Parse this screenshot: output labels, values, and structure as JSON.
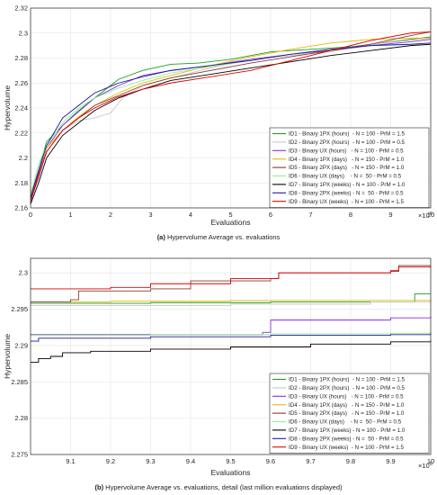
{
  "colors": {
    "ID1": "#1f9e1f",
    "ID2": "#c8c8c8",
    "ID3": "#8a2be2",
    "ID4": "#e6b800",
    "ID5": "#8b3a2a",
    "ID6": "#90ee90",
    "ID7": "#000000",
    "ID8": "#1a1aa6",
    "ID9": "#e00000"
  },
  "legend_entries": [
    "ID1 - Binary 1PX (hours)  - N = 100 - PrM = 1.5",
    "ID2 - Binary 2PX (hours)  - N = 100 - PrM = 0.5",
    "ID3 - Binary UX (hours)   - N = 100 - PrM = 0.5",
    "ID4 - Binary 1PX (days)   - N = 150 - PrM = 1.0",
    "ID5 - Binary 2PX (days)   - N = 150 - PrM = 1.0",
    "ID6 - Binary UX (days)    - N =  50 - PrM = 0.5",
    "ID7 - Binary 1PX (weeks) - N = 100 - PrM = 1.0",
    "ID8 - Binary 2PX (weeks) - N =  50 - PrM = 0.5",
    "ID9 - Binary UX (weeks)  - N = 100 - PrM = 1.5"
  ],
  "chart_data": [
    {
      "type": "line",
      "caption_label": "(a)",
      "caption_text": " Hypervolume Average vs. evaluations",
      "xlabel": "Evaluations",
      "ylabel": "Hypervolume",
      "x_multiplier": "×10",
      "x_multiplier_exp": "6",
      "xlim": [
        0,
        10
      ],
      "ylim": [
        2.16,
        2.32
      ],
      "xticks": [
        0,
        1,
        2,
        3,
        4,
        5,
        6,
        7,
        8,
        9,
        10
      ],
      "yticks": [
        2.16,
        2.18,
        2.2,
        2.22,
        2.24,
        2.26,
        2.28,
        2.3,
        2.32
      ],
      "grid": true,
      "legend_position": "bottom-right",
      "series": [
        {
          "key": "ID1",
          "points": [
            [
              0,
              2.17
            ],
            [
              0.2,
              2.19
            ],
            [
              0.4,
              2.213
            ],
            [
              0.8,
              2.226
            ],
            [
              1.2,
              2.238
            ],
            [
              1.6,
              2.248
            ],
            [
              2.2,
              2.263
            ],
            [
              2.8,
              2.27
            ],
            [
              3.5,
              2.275
            ],
            [
              4.2,
              2.276
            ],
            [
              5,
              2.279
            ],
            [
              6,
              2.285
            ],
            [
              7,
              2.287
            ],
            [
              8,
              2.289
            ],
            [
              9,
              2.293
            ],
            [
              10,
              2.297
            ]
          ]
        },
        {
          "key": "ID2",
          "points": [
            [
              0,
              2.167
            ],
            [
              0.2,
              2.183
            ],
            [
              0.4,
              2.205
            ],
            [
              0.8,
              2.222
            ],
            [
              1.2,
              2.23
            ],
            [
              1.6,
              2.232
            ],
            [
              2,
              2.236
            ],
            [
              2.3,
              2.248
            ],
            [
              2.8,
              2.258
            ],
            [
              3.5,
              2.264
            ],
            [
              4.5,
              2.272
            ],
            [
              5.5,
              2.279
            ],
            [
              6.5,
              2.282
            ],
            [
              7.5,
              2.285
            ],
            [
              8.5,
              2.291
            ],
            [
              10,
              2.296
            ]
          ]
        },
        {
          "key": "ID3",
          "points": [
            [
              0,
              2.168
            ],
            [
              0.2,
              2.188
            ],
            [
              0.4,
              2.208
            ],
            [
              0.8,
              2.226
            ],
            [
              1.2,
              2.237
            ],
            [
              1.6,
              2.248
            ],
            [
              2.2,
              2.258
            ],
            [
              2.8,
              2.266
            ],
            [
              3.5,
              2.27
            ],
            [
              4.5,
              2.274
            ],
            [
              5.5,
              2.279
            ],
            [
              6.5,
              2.283
            ],
            [
              7.5,
              2.286
            ],
            [
              8.5,
              2.29
            ],
            [
              9.5,
              2.293
            ],
            [
              10,
              2.295
            ]
          ]
        },
        {
          "key": "ID4",
          "points": [
            [
              0,
              2.172
            ],
            [
              0.2,
              2.19
            ],
            [
              0.4,
              2.208
            ],
            [
              0.8,
              2.222
            ],
            [
              1.2,
              2.233
            ],
            [
              1.6,
              2.242
            ],
            [
              2.2,
              2.252
            ],
            [
              2.8,
              2.26
            ],
            [
              3.5,
              2.266
            ],
            [
              4.5,
              2.274
            ],
            [
              5.5,
              2.281
            ],
            [
              6.5,
              2.287
            ],
            [
              7.5,
              2.292
            ],
            [
              8.5,
              2.295
            ],
            [
              9.5,
              2.296
            ],
            [
              10,
              2.296
            ]
          ]
        },
        {
          "key": "ID5",
          "points": [
            [
              0,
              2.165
            ],
            [
              0.2,
              2.185
            ],
            [
              0.4,
              2.205
            ],
            [
              0.8,
              2.222
            ],
            [
              1.2,
              2.232
            ],
            [
              1.6,
              2.242
            ],
            [
              2.2,
              2.25
            ],
            [
              2.8,
              2.258
            ],
            [
              3.5,
              2.264
            ],
            [
              4.5,
              2.27
            ],
            [
              5.5,
              2.276
            ],
            [
              6.5,
              2.281
            ],
            [
              7.5,
              2.286
            ],
            [
              8.5,
              2.291
            ],
            [
              9.5,
              2.298
            ],
            [
              10,
              2.301
            ]
          ]
        },
        {
          "key": "ID6",
          "points": [
            [
              0,
              2.17
            ],
            [
              0.2,
              2.195
            ],
            [
              0.4,
              2.21
            ],
            [
              0.8,
              2.228
            ],
            [
              1.2,
              2.24
            ],
            [
              1.6,
              2.248
            ],
            [
              2.2,
              2.256
            ],
            [
              2.8,
              2.262
            ],
            [
              3.5,
              2.268
            ],
            [
              4.5,
              2.273
            ],
            [
              5.5,
              2.278
            ],
            [
              6.5,
              2.283
            ],
            [
              7.5,
              2.287
            ],
            [
              8.5,
              2.29
            ],
            [
              9.5,
              2.291
            ],
            [
              10,
              2.292
            ]
          ]
        },
        {
          "key": "ID7",
          "points": [
            [
              0,
              2.163
            ],
            [
              0.2,
              2.18
            ],
            [
              0.4,
              2.2
            ],
            [
              0.8,
              2.218
            ],
            [
              1.2,
              2.228
            ],
            [
              1.6,
              2.238
            ],
            [
              2.2,
              2.248
            ],
            [
              2.8,
              2.255
            ],
            [
              3.5,
              2.262
            ],
            [
              4.5,
              2.267
            ],
            [
              5.5,
              2.272
            ],
            [
              6.5,
              2.277
            ],
            [
              7.5,
              2.282
            ],
            [
              8.5,
              2.286
            ],
            [
              9.5,
              2.29
            ],
            [
              10,
              2.291
            ]
          ]
        },
        {
          "key": "ID8",
          "points": [
            [
              0,
              2.168
            ],
            [
              0.2,
              2.19
            ],
            [
              0.4,
              2.21
            ],
            [
              0.8,
              2.232
            ],
            [
              1.2,
              2.242
            ],
            [
              1.6,
              2.252
            ],
            [
              2.2,
              2.26
            ],
            [
              2.8,
              2.265
            ],
            [
              3.5,
              2.27
            ],
            [
              4.5,
              2.274
            ],
            [
              5.5,
              2.278
            ],
            [
              6.5,
              2.283
            ],
            [
              7.5,
              2.287
            ],
            [
              8.5,
              2.29
            ],
            [
              9.5,
              2.291
            ],
            [
              10,
              2.292
            ]
          ]
        },
        {
          "key": "ID9",
          "points": [
            [
              0,
              2.166
            ],
            [
              0.2,
              2.186
            ],
            [
              0.4,
              2.205
            ],
            [
              0.8,
              2.222
            ],
            [
              1.2,
              2.232
            ],
            [
              1.6,
              2.24
            ],
            [
              2.2,
              2.249
            ],
            [
              2.8,
              2.255
            ],
            [
              3.5,
              2.26
            ],
            [
              4.5,
              2.265
            ],
            [
              5.5,
              2.27
            ],
            [
              6.5,
              2.278
            ],
            [
              7.5,
              2.286
            ],
            [
              8.5,
              2.294
            ],
            [
              9.5,
              2.3
            ],
            [
              10,
              2.301
            ]
          ]
        }
      ]
    },
    {
      "type": "line",
      "caption_label": "(b)",
      "caption_text": " Hypervolume Average vs. evaluations, detail (last million evaluations displayed)",
      "xlabel": "Evaluations",
      "ylabel": "Hypervolume",
      "x_multiplier": "×10",
      "x_multiplier_exp": "6",
      "xlim": [
        9.0,
        10.0
      ],
      "ylim": [
        2.275,
        2.302
      ],
      "xticks": [
        9.1,
        9.2,
        9.3,
        9.4,
        9.5,
        9.6,
        9.7,
        9.8,
        9.9,
        10
      ],
      "yticks": [
        2.275,
        2.28,
        2.285,
        2.29,
        2.295,
        2.3
      ],
      "grid": true,
      "legend_position": "bottom-right",
      "series": [
        {
          "key": "ID1",
          "points": [
            [
              9.0,
              2.2958
            ],
            [
              9.3,
              2.2959
            ],
            [
              9.6,
              2.296
            ],
            [
              9.95,
              2.296
            ],
            [
              9.96,
              2.2971
            ],
            [
              10,
              2.2971
            ]
          ]
        },
        {
          "key": "ID2",
          "points": [
            [
              9.0,
              2.2955
            ],
            [
              9.5,
              2.2957
            ],
            [
              9.85,
              2.296
            ],
            [
              10,
              2.2963
            ]
          ]
        },
        {
          "key": "ID3",
          "points": [
            [
              9.0,
              2.2915
            ],
            [
              9.58,
              2.2918
            ],
            [
              9.6,
              2.2935
            ],
            [
              9.9,
              2.2938
            ],
            [
              10,
              2.294
            ]
          ]
        },
        {
          "key": "ID4",
          "points": [
            [
              9.0,
              2.296
            ],
            [
              9.2,
              2.2961
            ],
            [
              9.5,
              2.2962
            ],
            [
              9.8,
              2.2962
            ],
            [
              10,
              2.2963
            ]
          ]
        },
        {
          "key": "ID5",
          "points": [
            [
              9.0,
              2.296
            ],
            [
              9.1,
              2.2963
            ],
            [
              9.12,
              2.2975
            ],
            [
              9.3,
              2.2978
            ],
            [
              9.4,
              2.2989
            ],
            [
              9.6,
              2.2992
            ],
            [
              9.62,
              2.3
            ],
            [
              9.9,
              2.3002
            ],
            [
              9.92,
              2.301
            ],
            [
              10,
              2.301
            ]
          ]
        },
        {
          "key": "ID6",
          "points": [
            [
              9.0,
              2.2914
            ],
            [
              9.3,
              2.2915
            ],
            [
              9.6,
              2.2916
            ],
            [
              9.9,
              2.2917
            ],
            [
              10,
              2.2918
            ]
          ]
        },
        {
          "key": "ID7",
          "points": [
            [
              9.0,
              2.2877
            ],
            [
              9.02,
              2.2882
            ],
            [
              9.05,
              2.2885
            ],
            [
              9.08,
              2.289
            ],
            [
              9.15,
              2.2892
            ],
            [
              9.3,
              2.2895
            ],
            [
              9.5,
              2.2898
            ],
            [
              9.7,
              2.2902
            ],
            [
              9.9,
              2.2905
            ],
            [
              10,
              2.2907
            ]
          ]
        },
        {
          "key": "ID8",
          "points": [
            [
              9.0,
              2.2906
            ],
            [
              9.02,
              2.291
            ],
            [
              9.3,
              2.2912
            ],
            [
              9.6,
              2.2914
            ],
            [
              9.9,
              2.2915
            ],
            [
              10,
              2.2917
            ]
          ]
        },
        {
          "key": "ID9",
          "points": [
            [
              9.0,
              2.2978
            ],
            [
              9.2,
              2.298
            ],
            [
              9.3,
              2.2985
            ],
            [
              9.5,
              2.2992
            ],
            [
              9.62,
              2.3
            ],
            [
              9.9,
              2.3003
            ],
            [
              9.92,
              2.3008
            ],
            [
              10,
              2.3009
            ]
          ]
        }
      ]
    }
  ]
}
